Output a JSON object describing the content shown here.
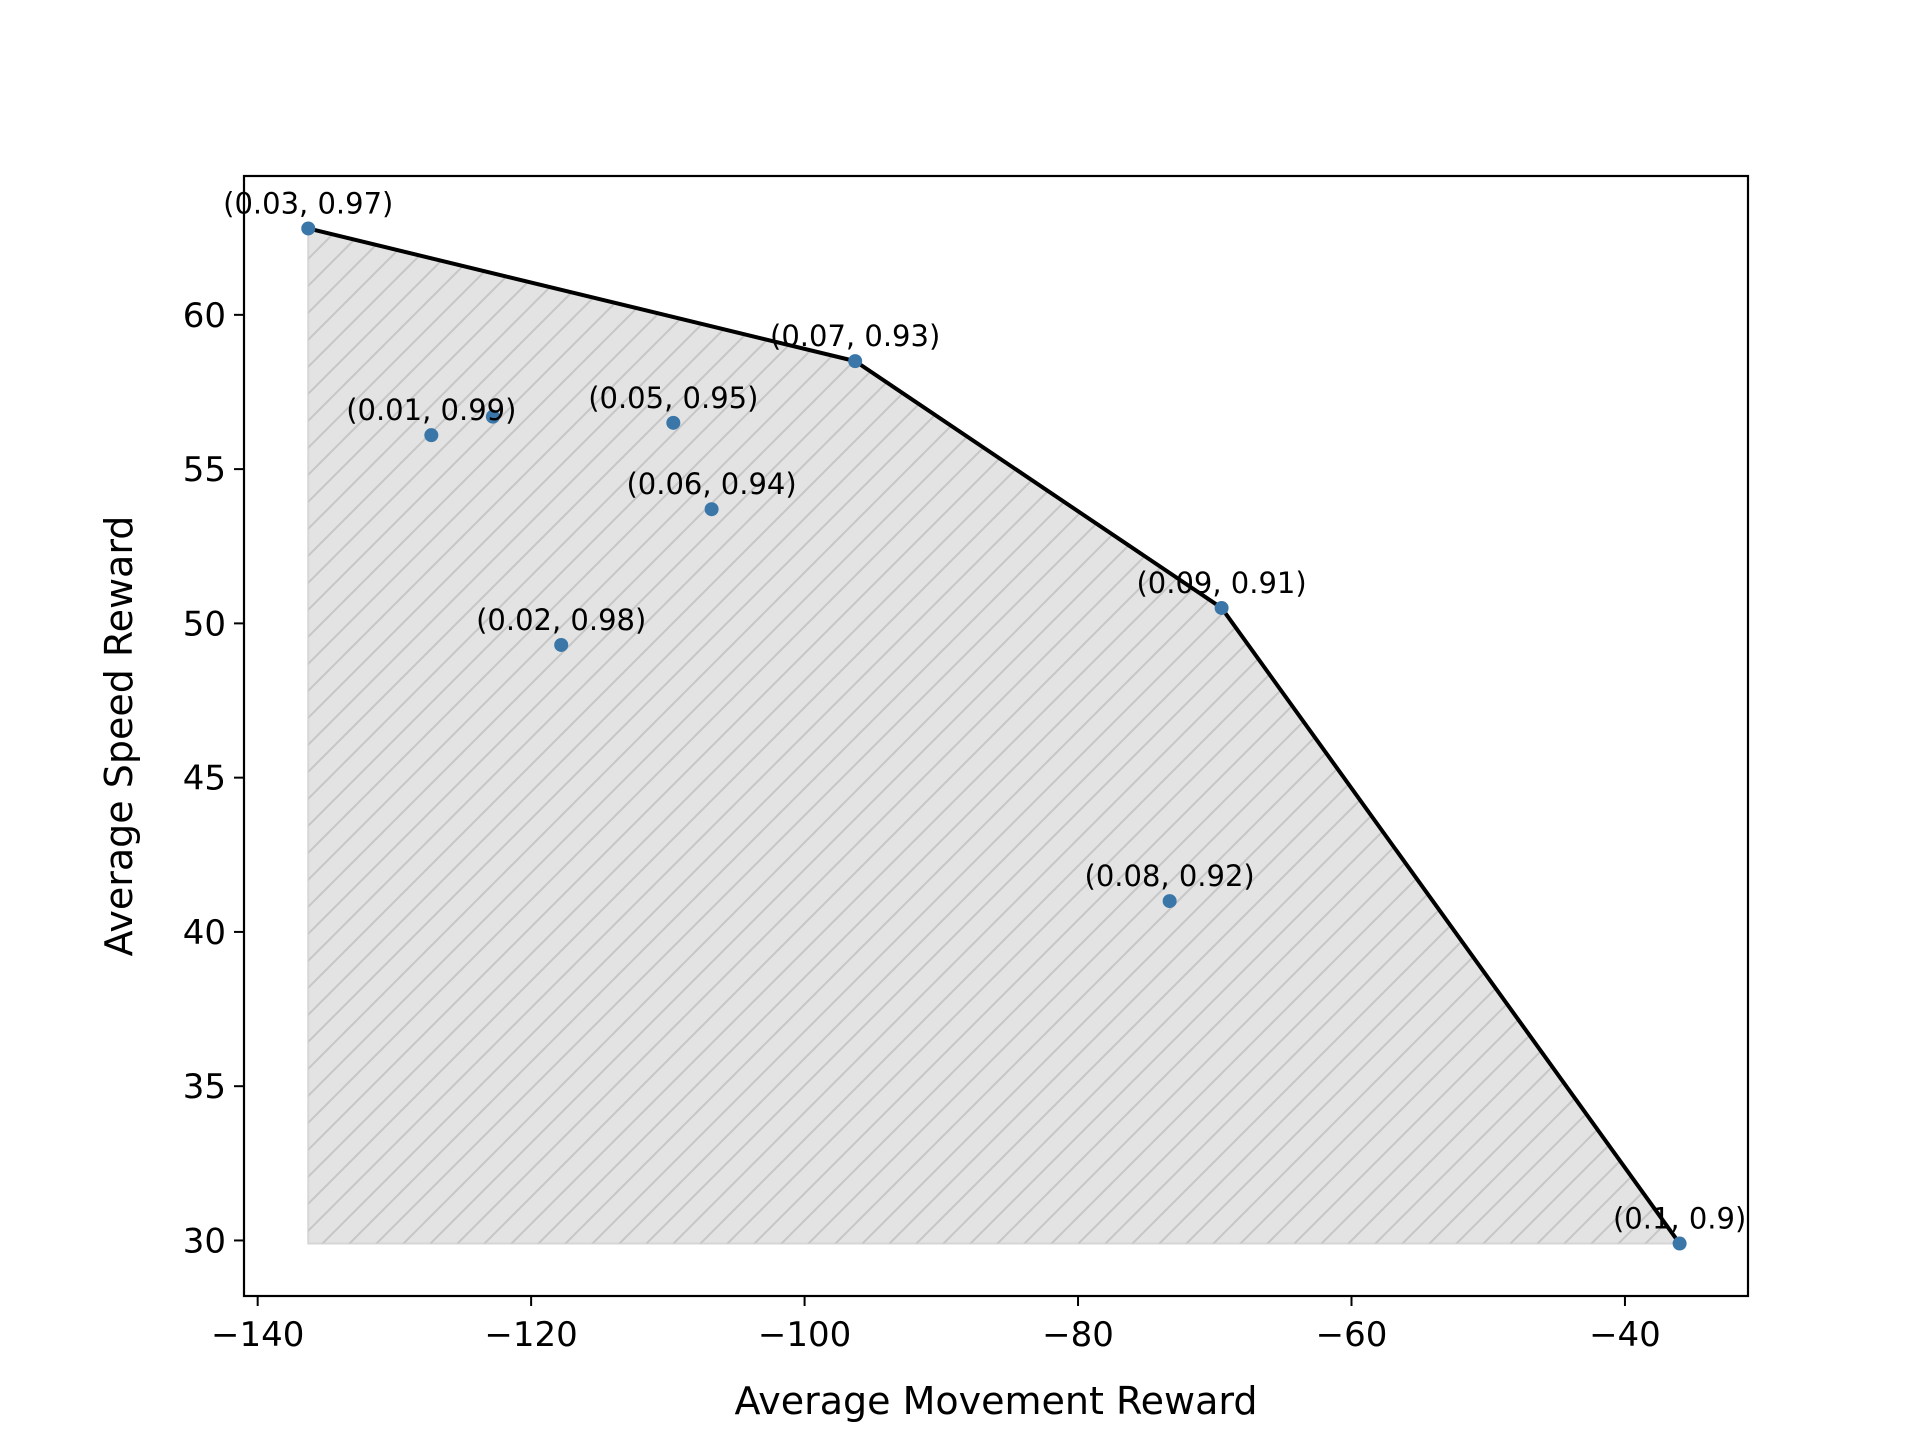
{
  "chart_data": {
    "type": "scatter",
    "xlabel": "Average Movement Reward",
    "ylabel": "Average Speed Reward",
    "xlim": [
      -141,
      -31
    ],
    "ylim": [
      28.2,
      64.5
    ],
    "xticks": [
      -140,
      -120,
      -100,
      -80,
      -60,
      -40
    ],
    "yticks": [
      30,
      35,
      40,
      45,
      50,
      55,
      60
    ],
    "grid": false,
    "legend": "none",
    "colors": {
      "point": "#3a76a8",
      "frontier": "#000000",
      "fill": "#e3e3e3",
      "hatch": "#c6c6c6"
    },
    "points": [
      {
        "x": -136.3,
        "y": 62.8,
        "label": "(0.03, 0.97)"
      },
      {
        "x": -127.3,
        "y": 56.1,
        "label": "(0.01, 0.99)"
      },
      {
        "x": -122.8,
        "y": 56.7,
        "label": ""
      },
      {
        "x": -117.8,
        "y": 49.3,
        "label": "(0.02, 0.98)"
      },
      {
        "x": -109.6,
        "y": 56.5,
        "label": "(0.05, 0.95)"
      },
      {
        "x": -106.8,
        "y": 53.7,
        "label": "(0.06, 0.94)"
      },
      {
        "x": -96.3,
        "y": 58.5,
        "label": "(0.07, 0.93)"
      },
      {
        "x": -73.3,
        "y": 41.0,
        "label": "(0.08, 0.92)"
      },
      {
        "x": -69.5,
        "y": 50.5,
        "label": "(0.09, 0.91)"
      },
      {
        "x": -36.0,
        "y": 29.9,
        "label": "(0.1, 0.9)"
      }
    ],
    "frontier": [
      {
        "x": -136.3,
        "y": 62.8
      },
      {
        "x": -96.3,
        "y": 58.5
      },
      {
        "x": -69.5,
        "y": 50.5
      },
      {
        "x": -36.0,
        "y": 29.9
      }
    ],
    "fill_region_baseline_y": 29.9
  }
}
